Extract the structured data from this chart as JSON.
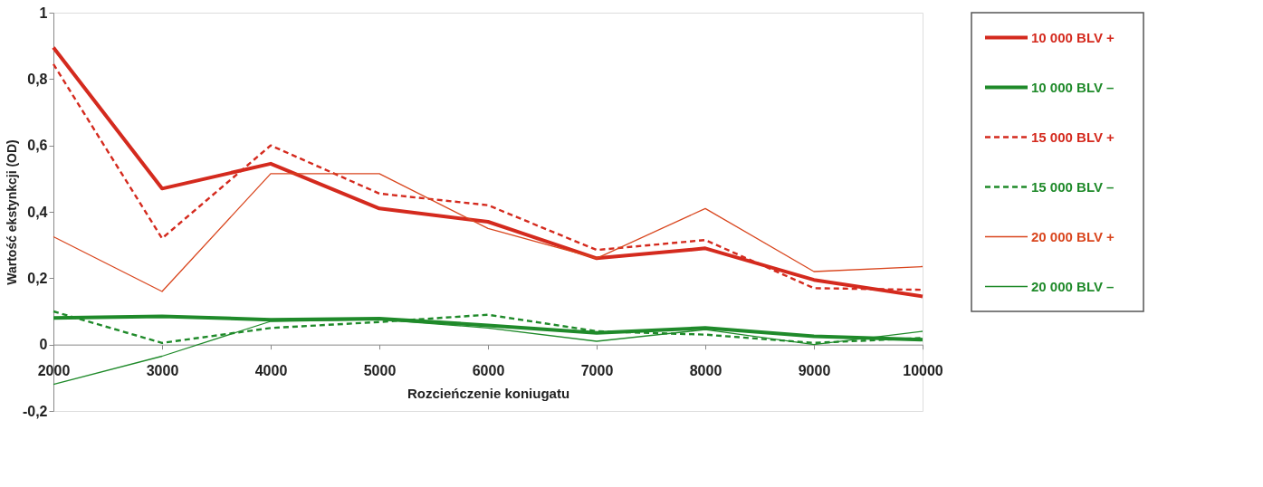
{
  "chart_data": {
    "type": "line",
    "xlabel": "Rozcieńczenie koniugatu",
    "ylabel": "Wartość ekstynkcji (OD)",
    "x": [
      2000,
      3000,
      4000,
      5000,
      6000,
      7000,
      8000,
      9000,
      10000
    ],
    "xlim": [
      2000,
      10000
    ],
    "xticks": [
      2000,
      3000,
      4000,
      5000,
      6000,
      7000,
      8000,
      9000,
      10000
    ],
    "ylim": [
      -0.2,
      1
    ],
    "yticks": [
      {
        "value": -0.2,
        "label": "-0,2"
      },
      0,
      {
        "value": 0.2,
        "label": "0,2"
      },
      {
        "value": 0.4,
        "label": "0,4"
      },
      {
        "value": 0.6,
        "label": "0,6"
      },
      {
        "value": 0.8,
        "label": "0,8"
      },
      1
    ],
    "grid": false,
    "legend": "right",
    "marker": "none",
    "series": [
      {
        "name": "10 000 BLV +",
        "color": "#d42a1e",
        "line_style": "solid",
        "values": [
          0.895,
          0.47,
          0.545,
          0.41,
          0.37,
          0.26,
          0.29,
          0.195,
          0.145
        ]
      },
      {
        "name": "10 000 BLV –",
        "color": "#1f8a2a",
        "line_style": "solid",
        "values": [
          0.08,
          0.085,
          0.075,
          0.078,
          0.058,
          0.035,
          0.05,
          0.025,
          0.015
        ]
      },
      {
        "name": "15 000 BLV +",
        "color": "#d42a1e",
        "line_style": "dashed",
        "values": [
          0.845,
          0.32,
          0.6,
          0.455,
          0.42,
          0.285,
          0.315,
          0.17,
          0.165
        ]
      },
      {
        "name": "15 000 BLV –",
        "color": "#1f8a2a",
        "line_style": "dashed",
        "values": [
          0.1,
          0.005,
          0.05,
          0.068,
          0.09,
          0.04,
          0.03,
          0.005,
          0.02
        ]
      },
      {
        "name": "20 000 BLV +",
        "color": "#d9461e",
        "line_style": "solid",
        "values": [
          0.325,
          0.16,
          0.515,
          0.515,
          0.35,
          0.26,
          0.41,
          0.22,
          0.235
        ]
      },
      {
        "name": "20 000 BLV –",
        "color": "#1f8a2a",
        "line_style": "solid",
        "values": [
          -0.12,
          -0.035,
          0.07,
          0.075,
          0.05,
          0.01,
          0.045,
          0.0,
          0.04
        ]
      }
    ]
  }
}
